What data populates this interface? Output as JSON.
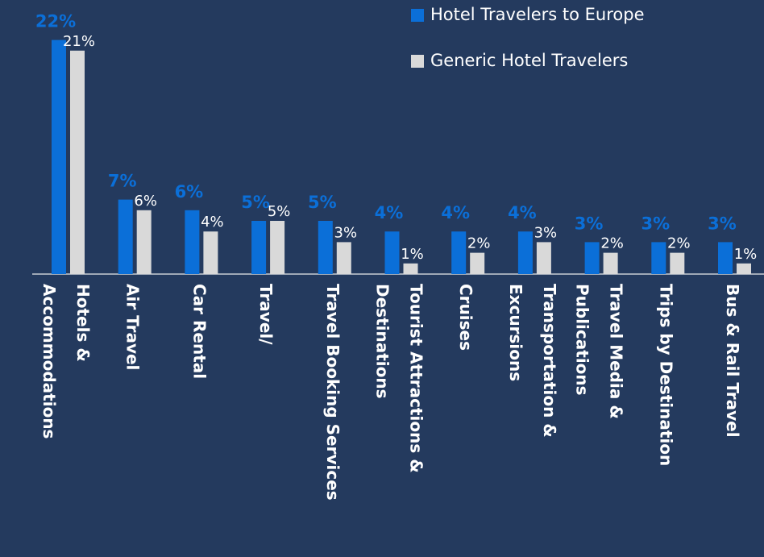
{
  "chart_data": {
    "type": "bar",
    "categories": [
      [
        "Hotels &",
        "Accommodations"
      ],
      [
        "Air Travel"
      ],
      [
        "Car Rental"
      ],
      [
        "Travel/"
      ],
      [
        "Travel Booking Services"
      ],
      [
        "Tourist Attractions &",
        "Destinations"
      ],
      [
        "Cruises"
      ],
      [
        "Transportation &",
        "Excursions"
      ],
      [
        "Travel Media &",
        "Publications"
      ],
      [
        "Trips by Destination"
      ],
      [
        "Bus & Rail Travel"
      ]
    ],
    "series": [
      {
        "name": "Hotel Travelers to Europe",
        "color": "#0b6fd8",
        "values": [
          22,
          7,
          6,
          5,
          5,
          4,
          4,
          4,
          3,
          3,
          3
        ],
        "value_labels": [
          "22%",
          "7%",
          "6%",
          "5%",
          "5%",
          "4%",
          "4%",
          "4%",
          "3%",
          "3%",
          "3%"
        ]
      },
      {
        "name": "Generic Hotel Travelers",
        "color": "#d9d9d9",
        "values": [
          21,
          6,
          4,
          5,
          3,
          1,
          2,
          3,
          2,
          2,
          1
        ],
        "value_labels": [
          "21%",
          "6%",
          "4%",
          "5%",
          "3%",
          "1%",
          "2%",
          "3%",
          "2%",
          "2%",
          "1%"
        ]
      }
    ]
  }
}
